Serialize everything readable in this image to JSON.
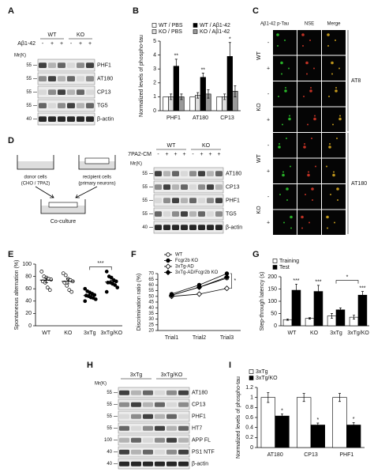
{
  "panel_labels": [
    "A",
    "B",
    "C",
    "D",
    "E",
    "F",
    "G",
    "H",
    "I"
  ],
  "chart_data": [
    {
      "type": "bar",
      "ylabel": "Normalized levels of phospho-tau",
      "categories": [
        "PHF1",
        "AT180",
        "CP13"
      ],
      "ylim": [
        0,
        5
      ],
      "yticks": [
        0,
        1,
        2,
        3,
        4,
        5
      ],
      "series": [
        {
          "name": "WT / PBS",
          "color": "#ffffff",
          "values": [
            1,
            1,
            1
          ]
        },
        {
          "name": "KO / PBS",
          "color": "#dddddd",
          "values": [
            1,
            1.1,
            1
          ],
          "errors": [
            0.2,
            0.2,
            0.2
          ]
        },
        {
          "name": "WT / Aβ1-42",
          "color": "#000000",
          "values": [
            3.2,
            2.4,
            3.9
          ],
          "errors": [
            0.5,
            0.3,
            1.0
          ],
          "significance": [
            "**",
            "**",
            "*"
          ]
        },
        {
          "name": "KO / Aβ1-42",
          "color": "#999999",
          "values": [
            1,
            1.2,
            1.4
          ],
          "errors": [
            0.2,
            0.3,
            0.4
          ]
        }
      ]
    },
    {
      "type": "dot",
      "ylabel": "Spontaneous alternation (%)",
      "categories": [
        "WT",
        "KO",
        "3xTg",
        "3xTg/KO"
      ],
      "ylim": [
        0,
        100
      ],
      "yticks": [
        0,
        20,
        40,
        60,
        80,
        100
      ],
      "points": [
        [
          88,
          80,
          78,
          76,
          75,
          72,
          70,
          62,
          58
        ],
        [
          85,
          82,
          76,
          74,
          72,
          70,
          65,
          58,
          55
        ],
        [
          60,
          56,
          54,
          52,
          50,
          49,
          48,
          46,
          45,
          43,
          40
        ],
        [
          88,
          80,
          78,
          74,
          72,
          70,
          70,
          68,
          66,
          62,
          55
        ]
      ],
      "means": [
        74,
        72,
        49,
        71
      ],
      "errors": [
        4,
        4,
        2,
        3
      ],
      "bracket": "***"
    },
    {
      "type": "line",
      "ylabel": "Discrimination ratio (%)",
      "categories": [
        "Trial1",
        "Trial2",
        "Trial3"
      ],
      "ylim": [
        20,
        70
      ],
      "yticks": [
        20,
        25,
        30,
        35,
        40,
        45,
        50,
        55,
        60,
        65,
        70
      ],
      "annotation": "*",
      "series": [
        {
          "name": "WT",
          "color": "#000000",
          "marker": "circle",
          "fill": "#ffffff",
          "values": [
            51,
            58,
            66
          ]
        },
        {
          "name": "Fcgr2b KO",
          "color": "#000000",
          "marker": "circle",
          "fill": "#000000",
          "values": [
            52,
            60,
            70
          ]
        },
        {
          "name": "3xTg-AD",
          "color": "#000000",
          "marker": "diamond",
          "fill": "#ffffff",
          "values": [
            50,
            52,
            57
          ]
        },
        {
          "name": "3xTg-AD/Fcgr2b KO",
          "color": "#000000",
          "marker": "diamond",
          "fill": "#000000",
          "values": [
            51,
            58,
            67
          ]
        }
      ]
    },
    {
      "type": "bar",
      "ylabel": "Step-through latency (s)",
      "categories": [
        "WT",
        "KO",
        "3xTg",
        "3xTg/KO"
      ],
      "ylim": [
        0,
        200
      ],
      "yticks": [
        0,
        50,
        100,
        150,
        200
      ],
      "bracket": "*",
      "series": [
        {
          "name": "Training",
          "color": "#ffffff",
          "values": [
            25,
            30,
            40,
            35
          ],
          "errors": [
            3,
            3,
            10,
            8
          ]
        },
        {
          "name": "Test",
          "color": "#000000",
          "values": [
            145,
            140,
            65,
            125
          ],
          "errors": [
            25,
            25,
            8,
            15
          ],
          "significance": [
            "***",
            "***",
            null,
            "***"
          ]
        }
      ]
    },
    {
      "type": "bar",
      "ylabel": "Normalized levels of phospho-tau",
      "categories": [
        "AT180",
        "CP13",
        "PHF1"
      ],
      "ylim": [
        0,
        1.2
      ],
      "yticks": [
        0,
        0.2,
        0.4,
        0.6,
        0.8,
        1,
        1.2
      ],
      "series": [
        {
          "name": "3xTg",
          "color": "#ffffff",
          "values": [
            1,
            1,
            1
          ],
          "errors": [
            0.1,
            0.08,
            0.08
          ]
        },
        {
          "name": "3xTg/KO",
          "color": "#000000",
          "values": [
            0.63,
            0.45,
            0.45
          ],
          "errors": [
            0.04,
            0.04,
            0.05
          ],
          "significance": [
            "*",
            "*",
            "*"
          ]
        }
      ]
    }
  ],
  "blot_A": {
    "groups": [
      "WT",
      "KO"
    ],
    "treatment": "Aβ1-42",
    "signs": [
      "-",
      "+",
      "+",
      "-",
      "+",
      "+"
    ],
    "mr_label": "Mr(K)",
    "markers": [
      55,
      55,
      55,
      55,
      40
    ],
    "bands": [
      "PHF1",
      "AT180",
      "CP13",
      "TG5",
      "β-actin"
    ]
  },
  "micrographs_C": {
    "columns": [
      "Aβ1-42 p-Tau",
      "NSE",
      "Merge"
    ],
    "groups": [
      "WT",
      "KO",
      "WT",
      "KO"
    ],
    "signs": [
      "-",
      "+",
      "-",
      "+",
      "-",
      "+",
      "-",
      "+"
    ],
    "antibodies": [
      "AT8",
      "AT180"
    ]
  },
  "diagram_D": {
    "donor": [
      "donor cells",
      "(CHO / 7PA2)"
    ],
    "recipient": [
      "recipient cells",
      "(primary neurons)"
    ],
    "coculture": "Co-culture"
  },
  "blot_D": {
    "groups": [
      "WT",
      "KO"
    ],
    "treatment": "7PA2-CM",
    "signs": [
      "-",
      "+",
      "+",
      "+",
      "-",
      "+",
      "+",
      "+"
    ],
    "mr_label": "Mr(K)",
    "markers": [
      55,
      55,
      55,
      55,
      40
    ],
    "bands": [
      "AT180",
      "CP13",
      "PHF1",
      "TG5",
      "β-actin"
    ]
  },
  "blot_H": {
    "groups": [
      "3xTg",
      "3xTg/KO"
    ],
    "mr_label": "Mr(K)",
    "markers": [
      55,
      55,
      55,
      55,
      100,
      40,
      40
    ],
    "bands": [
      "AT180",
      "CP13",
      "PHF1",
      "HT7",
      "APP FL",
      "PS1 NTF",
      "β-actin"
    ]
  }
}
